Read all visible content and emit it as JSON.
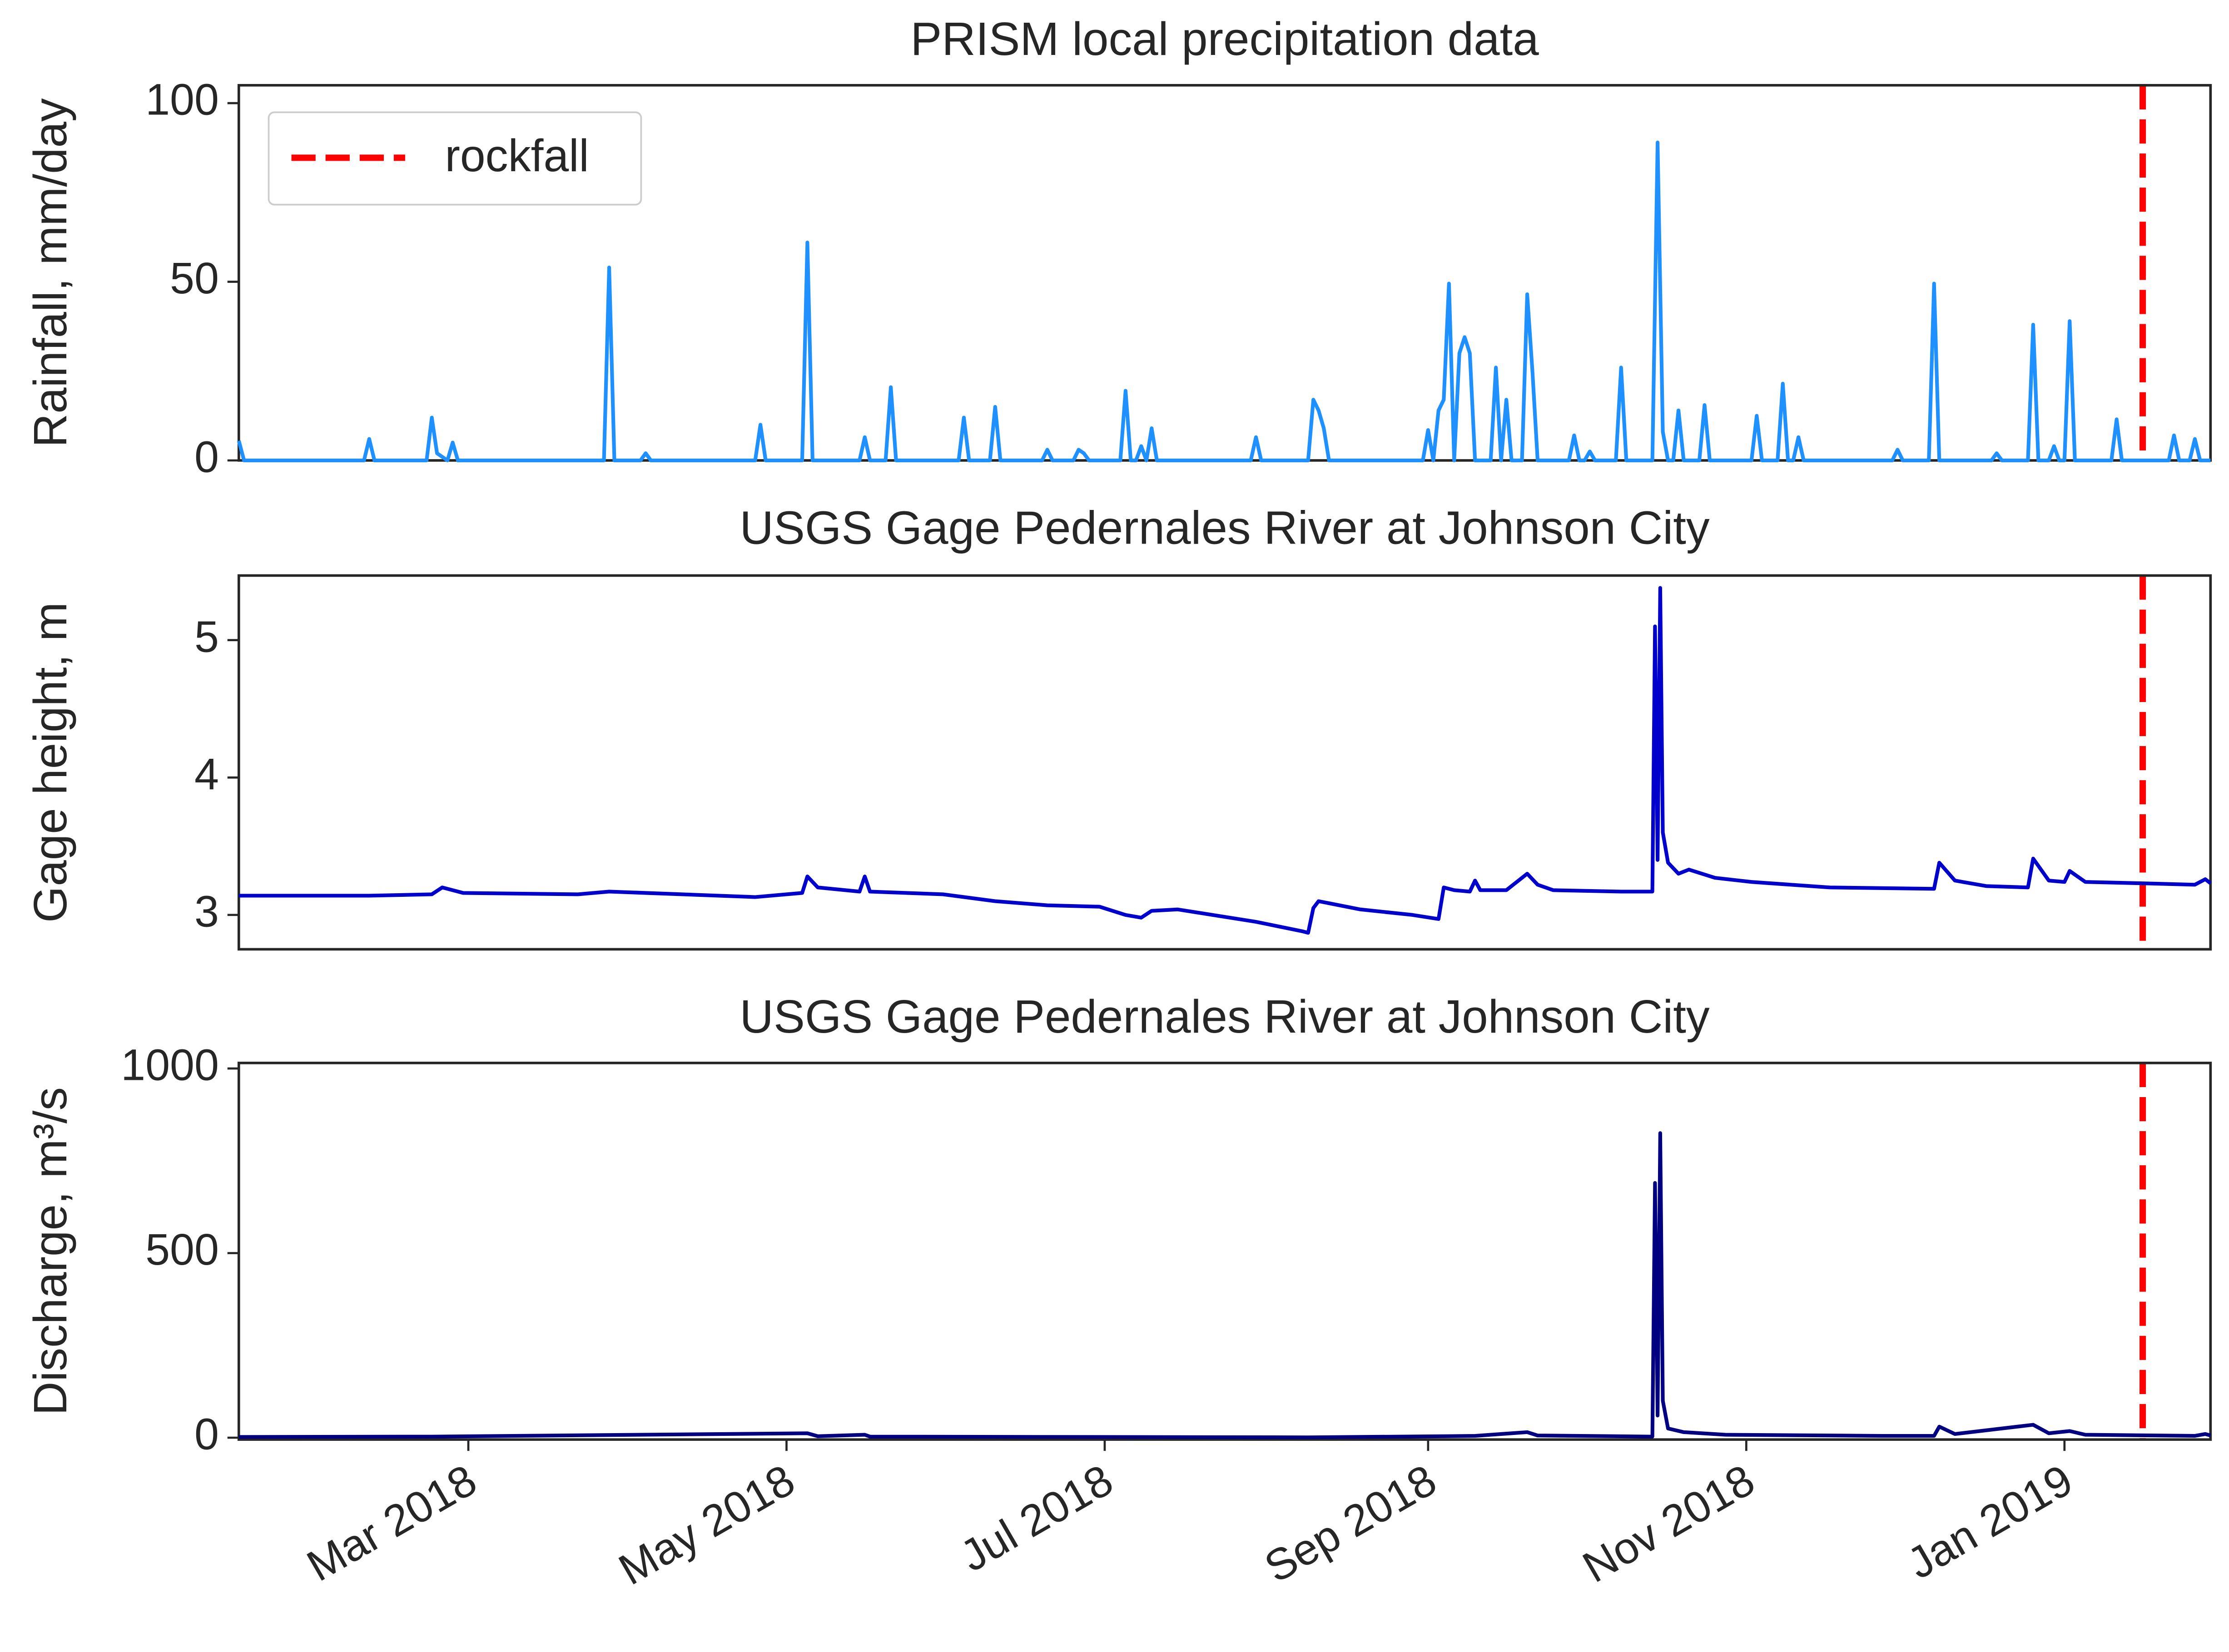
{
  "chart_data": [
    {
      "type": "line",
      "title": "PRISM local precipitation data",
      "ylabel": "Rainfall, mm/day",
      "xlim": [
        15,
        393
      ],
      "ylim": [
        0,
        105
      ],
      "yticks": [
        0,
        50,
        100
      ],
      "legend": "upper left",
      "vline": {
        "name": "rockfall",
        "x": 380,
        "color": "#ff0000",
        "style": "dashed"
      },
      "x": [
        15,
        16,
        39,
        40,
        41,
        51,
        52,
        53,
        55,
        56,
        57,
        85,
        86,
        87,
        92,
        93,
        94,
        114,
        115,
        116,
        123,
        124,
        125,
        134,
        135,
        136,
        139,
        140,
        141,
        153,
        154,
        155,
        159,
        160,
        161,
        169,
        170,
        171,
        175,
        176,
        177,
        178,
        184,
        185,
        186,
        187,
        188,
        189,
        190,
        191,
        209,
        210,
        211,
        220,
        221,
        222,
        223,
        224,
        242,
        243,
        244,
        245,
        246,
        247,
        248,
        249,
        250,
        251,
        252,
        255,
        256,
        257,
        258,
        259,
        261,
        262,
        263,
        264,
        270,
        271,
        272,
        273,
        274,
        275,
        279,
        280,
        281,
        286,
        287,
        288,
        289,
        290,
        291,
        292,
        295,
        296,
        297,
        305,
        306,
        307,
        310,
        311,
        312,
        313,
        314,
        315,
        332,
        333,
        334,
        339,
        340,
        341,
        351,
        352,
        353,
        358,
        359,
        360,
        362,
        363,
        364,
        365,
        366,
        367,
        374,
        375,
        376,
        385,
        386,
        387,
        389,
        390,
        391,
        393
      ],
      "series": [
        {
          "name": "Rainfall",
          "color": "#1e90ff",
          "values": [
            5.5,
            0,
            0,
            6,
            0,
            0,
            12,
            2,
            0,
            5,
            0,
            0,
            54,
            0,
            0,
            2,
            0,
            0,
            10,
            0,
            0,
            61,
            0,
            0,
            6.5,
            0,
            0,
            20.5,
            0,
            0,
            12,
            0,
            0,
            15,
            0,
            0,
            3,
            0,
            0,
            3,
            2,
            0,
            0,
            19.5,
            0,
            0,
            4,
            0,
            9,
            0,
            0,
            6.5,
            0,
            0,
            17,
            14,
            9,
            0,
            0,
            8.5,
            0,
            14,
            17,
            49.5,
            0,
            30,
            34.5,
            30,
            0,
            0,
            26,
            0,
            17,
            0,
            0,
            46.5,
            25,
            0,
            0,
            7,
            0,
            0,
            2.5,
            0,
            0,
            26,
            0,
            0,
            89,
            8,
            0,
            0,
            14,
            0,
            0,
            15.5,
            0,
            0,
            12.5,
            0,
            0,
            21.5,
            0,
            0,
            6.5,
            0,
            0,
            3,
            0,
            0,
            49.5,
            0,
            0,
            2,
            0,
            0,
            38,
            0,
            0,
            4,
            0,
            0,
            39,
            0,
            0,
            11.5,
            0,
            0,
            7,
            0,
            0,
            6,
            0,
            0
          ]
        }
      ]
    },
    {
      "type": "line",
      "title": "USGS Gage Pedernales River at Johnson City",
      "ylabel": "Gage height, m",
      "xlim": [
        15,
        393
      ],
      "ylim": [
        2.75,
        5.47
      ],
      "yticks": [
        3,
        4,
        5
      ],
      "vline": {
        "x": 380,
        "color": "#ff0000",
        "style": "dashed"
      },
      "x": [
        15,
        40,
        52,
        54,
        58,
        80,
        86,
        100,
        114,
        120,
        123,
        124,
        126,
        134,
        135,
        136,
        150,
        160,
        170,
        180,
        185,
        188,
        190,
        195,
        210,
        219,
        220,
        221,
        222,
        230,
        240,
        245,
        246,
        248,
        251,
        252,
        253,
        258,
        262,
        264,
        267,
        280,
        286,
        286.5,
        287,
        287.5,
        288,
        289,
        291,
        293,
        298,
        305,
        320,
        340,
        341,
        344,
        350,
        358,
        359,
        362,
        365,
        366,
        369,
        380,
        390,
        392,
        393
      ],
      "series": [
        {
          "name": "Gage height",
          "color": "#0000cd",
          "values": [
            3.14,
            3.14,
            3.15,
            3.2,
            3.16,
            3.15,
            3.17,
            3.15,
            3.13,
            3.15,
            3.16,
            3.28,
            3.2,
            3.17,
            3.28,
            3.17,
            3.15,
            3.1,
            3.07,
            3.06,
            3.0,
            2.98,
            3.03,
            3.04,
            2.95,
            2.88,
            2.87,
            3.05,
            3.1,
            3.04,
            3.0,
            2.97,
            3.2,
            3.18,
            3.17,
            3.25,
            3.18,
            3.18,
            3.3,
            3.22,
            3.18,
            3.17,
            3.17,
            5.1,
            3.4,
            5.38,
            3.6,
            3.38,
            3.3,
            3.33,
            3.27,
            3.24,
            3.2,
            3.19,
            3.38,
            3.25,
            3.21,
            3.2,
            3.41,
            3.25,
            3.24,
            3.32,
            3.24,
            3.23,
            3.22,
            3.26,
            3.23
          ]
        }
      ]
    },
    {
      "type": "line",
      "title": "USGS Gage Pedernales River at Johnson City",
      "ylabel": "Discharge, m³/s",
      "xlim": [
        15,
        393
      ],
      "ylim": [
        -5,
        1015
      ],
      "yticks": [
        0,
        500,
        1000
      ],
      "xticks": [
        {
          "value": 59,
          "label": "Mar 2018"
        },
        {
          "value": 120,
          "label": "May 2018"
        },
        {
          "value": 181,
          "label": "Jul 2018"
        },
        {
          "value": 243,
          "label": "Sep 2018"
        },
        {
          "value": 304,
          "label": "Nov 2018"
        },
        {
          "value": 365,
          "label": "Jan 2019"
        }
      ],
      "vline": {
        "x": 380,
        "color": "#ff0000",
        "style": "dashed"
      },
      "x": [
        15,
        52,
        124,
        126,
        135,
        136,
        220,
        246,
        252,
        262,
        264,
        286,
        286.5,
        287,
        287.5,
        288,
        289,
        292,
        300,
        330,
        340,
        341,
        344,
        359,
        362,
        366,
        369,
        390,
        392,
        393
      ],
      "series": [
        {
          "name": "Discharge",
          "color": "#000080",
          "values": [
            2,
            3,
            12,
            4,
            8,
            3,
            1,
            4,
            5,
            15,
            6,
            3,
            690,
            60,
            825,
            100,
            25,
            15,
            8,
            5,
            5,
            30,
            10,
            35,
            12,
            18,
            8,
            5,
            10,
            6
          ]
        }
      ]
    }
  ]
}
